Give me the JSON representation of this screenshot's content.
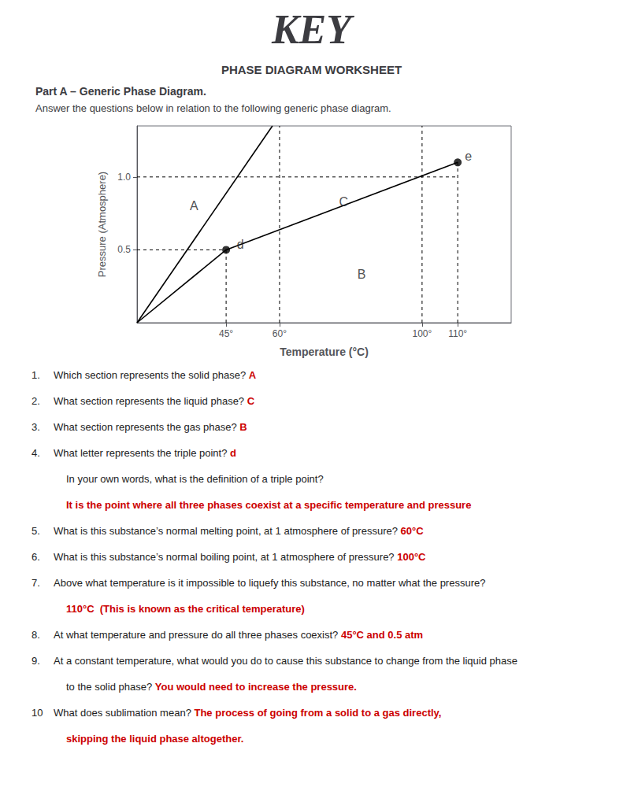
{
  "chart_data": {
    "type": "line",
    "title": "KEY",
    "subtitle": "PHASE DIAGRAM WORKSHEET",
    "heading": "Part A – Generic Phase Diagram.",
    "description": "Answer the questions below in relation to the following generic phase diagram.",
    "x_label": "Temperature (°C)",
    "y_label": "Pressure (Atmosphere)",
    "xlim": [
      20,
      125
    ],
    "ylim": [
      0,
      1.35
    ],
    "xticks": [
      {
        "value": 45,
        "label": "45°"
      },
      {
        "value": 60,
        "label": "60°"
      },
      {
        "value": 100,
        "label": "100°"
      },
      {
        "value": 110,
        "label": "110°"
      }
    ],
    "yticks": [
      0.5,
      {
        "value": 1.0,
        "label": "1.0"
      }
    ],
    "grid": false,
    "series": [
      {
        "type": "line",
        "color": "#000000",
        "line_style": "solid",
        "x": [
          20,
          45
        ],
        "values": [
          0.0,
          0.5
        ]
      },
      {
        "type": "line",
        "color": "#000000",
        "line_style": "solid",
        "x": [
          20,
          58
        ],
        "values": [
          0.0,
          1.35
        ]
      },
      {
        "type": "line",
        "color": "#000000",
        "line_style": "solid",
        "x": [
          45,
          110
        ],
        "values": [
          0.5,
          1.1
        ]
      },
      {
        "type": "line",
        "color": "#000000",
        "line_style": "dashed",
        "x": [
          20,
          45
        ],
        "values": [
          0.5,
          0.5
        ]
      },
      {
        "type": "line",
        "color": "#000000",
        "line_style": "dashed",
        "x": [
          20,
          110
        ],
        "values": [
          1.0,
          1.0
        ]
      },
      {
        "type": "line",
        "color": "#000000",
        "line_style": "dashed",
        "x": [
          45,
          45
        ],
        "values": [
          0,
          0.5
        ]
      },
      {
        "type": "line",
        "color": "#000000",
        "line_style": "dashed",
        "x": [
          60,
          60
        ],
        "values": [
          0,
          1.35
        ]
      },
      {
        "type": "line",
        "color": "#000000",
        "line_style": "dashed",
        "x": [
          100,
          100
        ],
        "values": [
          0,
          1.35
        ]
      },
      {
        "type": "line",
        "color": "#000000",
        "line_style": "dashed",
        "x": [
          110,
          110
        ],
        "values": [
          0,
          1.1
        ]
      },
      {
        "type": "scatter",
        "color": "#000000",
        "marker": "circle",
        "x": [
          45,
          110
        ],
        "values": [
          0.5,
          1.1
        ]
      }
    ],
    "annotations": [
      {
        "text": "A",
        "x": 36,
        "y": 0.8
      },
      {
        "text": "B",
        "x": 83,
        "y": 0.33
      },
      {
        "text": "C",
        "x": 78,
        "y": 0.83
      },
      {
        "text": "d",
        "x": 49,
        "y": 0.535
      },
      {
        "text": "e",
        "x": 113,
        "y": 1.14
      }
    ],
    "questions": [
      {
        "num": "1.",
        "text": "Which section represents the solid phase?",
        "answer": "A",
        "color": "#cc0000"
      },
      {
        "num": "2.",
        "text": "What section represents the liquid phase?",
        "answer": "C",
        "color": "#cc0000"
      },
      {
        "num": "3.",
        "text": "What section represents the gas phase?",
        "answer": "B",
        "color": "#cc0000"
      },
      {
        "num": "4.",
        "text": "What letter represents the triple point?",
        "answer": "d",
        "color": "#cc0000"
      },
      {
        "text": "In your own words, what is the definition of a triple point?"
      },
      {
        "answer": "It is the point where all three phases coexist at a specific temperature and pressure",
        "color": "#cc0000"
      },
      {
        "num": "5.",
        "text": "What is this substance’s normal melting point, at 1 atmosphere of pressure?",
        "answer": "60°C",
        "color": "#cc0000"
      },
      {
        "num": "6.",
        "text": "What is this substance’s normal boiling point, at 1 atmosphere of pressure?",
        "answer": "100°C",
        "color": "#cc0000"
      },
      {
        "num": "7.",
        "text": "Above what temperature is it impossible to liquefy this substance, no matter what the pressure?"
      },
      {
        "answer": "110°C  (This is known as the critical temperature)",
        "color": "#cc0000"
      },
      {
        "num": "8.",
        "text": "At what temperature and pressure do all three phases coexist?",
        "answer": "45°C and 0.5 atm",
        "color": "#cc0000"
      },
      {
        "num": "9.",
        "text": "At a constant temperature, what would you do to cause this substance to change from the liquid phase"
      },
      {
        "text": "to the solid phase?",
        "answer": "You would need to increase the pressure.",
        "color": "#cc0000"
      },
      {
        "num": "10",
        "text": "What does sublimation mean?",
        "answer": "The process of going from a solid to a gas directly,",
        "color": "#cc0000"
      },
      {
        "answer": "skipping the liquid phase altogether.",
        "color": "#cc0000"
      }
    ]
  }
}
